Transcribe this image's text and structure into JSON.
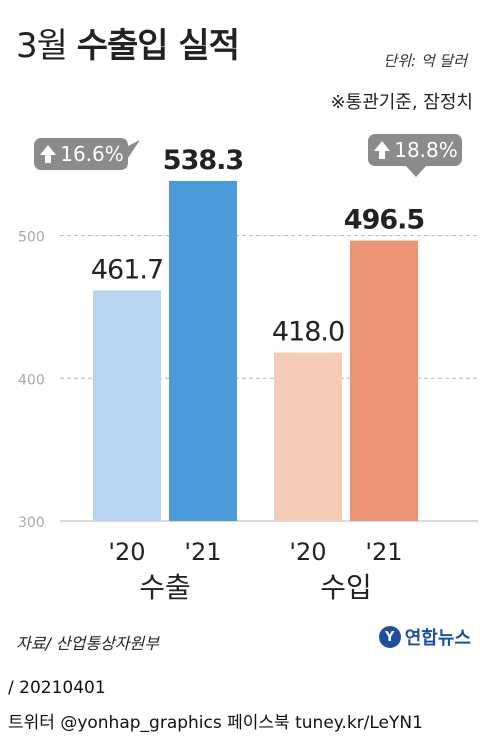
{
  "header": {
    "title_light": "3월",
    "title_bold": "수출입 실적",
    "unit": "단위: 억 달러",
    "note": "※통관기준, 잠정치"
  },
  "chart_data": {
    "type": "bar",
    "ylim": [
      300,
      560
    ],
    "yticks": [
      300,
      400,
      500
    ],
    "grid": true,
    "groups": [
      {
        "label": "수출",
        "bars": [
          {
            "year": "'20",
            "value": 461.7,
            "value_label": "461.7",
            "color": "#b9d4f0"
          },
          {
            "year": "'21",
            "value": 538.3,
            "value_label": "538.3",
            "color": "#4a9bd8"
          }
        ],
        "change_label": "16.6%"
      },
      {
        "label": "수입",
        "bars": [
          {
            "year": "'20",
            "value": 418.0,
            "value_label": "418.0",
            "color": "#f5cbb6"
          },
          {
            "year": "'21",
            "value": 496.5,
            "value_label": "496.5",
            "color": "#ec9576"
          }
        ],
        "change_label": "18.8%"
      }
    ]
  },
  "source": "자료/ 산업통상자원부",
  "logo": {
    "mark": "Y",
    "text": "연합뉴스"
  },
  "footer": {
    "date": "/ 20210401",
    "social": "트위터 @yonhap_graphics  페이스북 tuney.kr/LeYN1"
  }
}
